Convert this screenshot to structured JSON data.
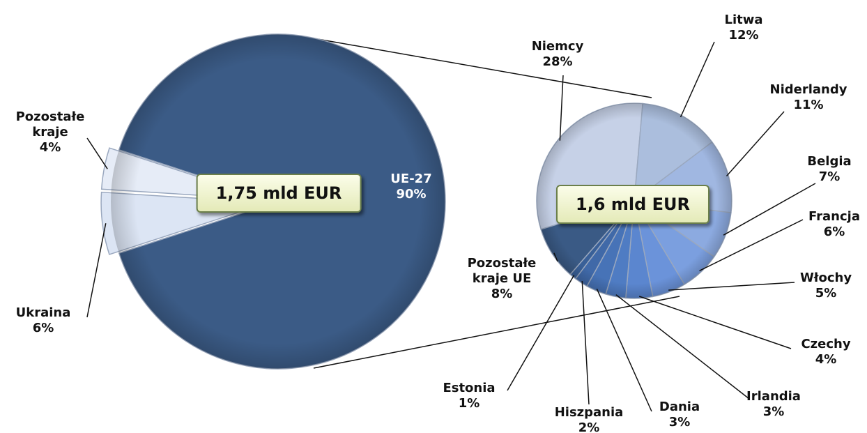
{
  "chart_data": [
    {
      "type": "pie",
      "center_label": "1,75 mld EUR",
      "categories": [
        "UE-27",
        "Ukraina",
        "Pozostałe kraje"
      ],
      "values": [
        90,
        6,
        4
      ],
      "value_labels": [
        "90%",
        "6%",
        "4%"
      ],
      "colors": [
        "#3b5b86",
        "#dce5f4",
        "#e6ecf7"
      ]
    },
    {
      "type": "pie",
      "center_label": "1,6 mld EUR",
      "categories": [
        "Niemcy",
        "Litwa",
        "Niderlandy",
        "Belgia",
        "Francja",
        "Włochy",
        "Czechy",
        "Irlandia",
        "Dania",
        "Hiszpania",
        "Estonia",
        "Pozostałe kraje UE"
      ],
      "values": [
        28,
        12,
        11,
        7,
        6,
        5,
        4,
        3,
        3,
        2,
        1,
        8
      ],
      "value_labels": [
        "28%",
        "12%",
        "11%",
        "7%",
        "6%",
        "5%",
        "4%",
        "3%",
        "3%",
        "2%",
        "1%",
        "8%"
      ],
      "colors": [
        "#c6d1e7",
        "#abbedd",
        "#a0b7e1",
        "#8caae0",
        "#7b9fdf",
        "#6b93da",
        "#5b86cf",
        "#4f7cc3",
        "#4773b7",
        "#4069a8",
        "#396098",
        "#3a5a85"
      ]
    }
  ]
}
